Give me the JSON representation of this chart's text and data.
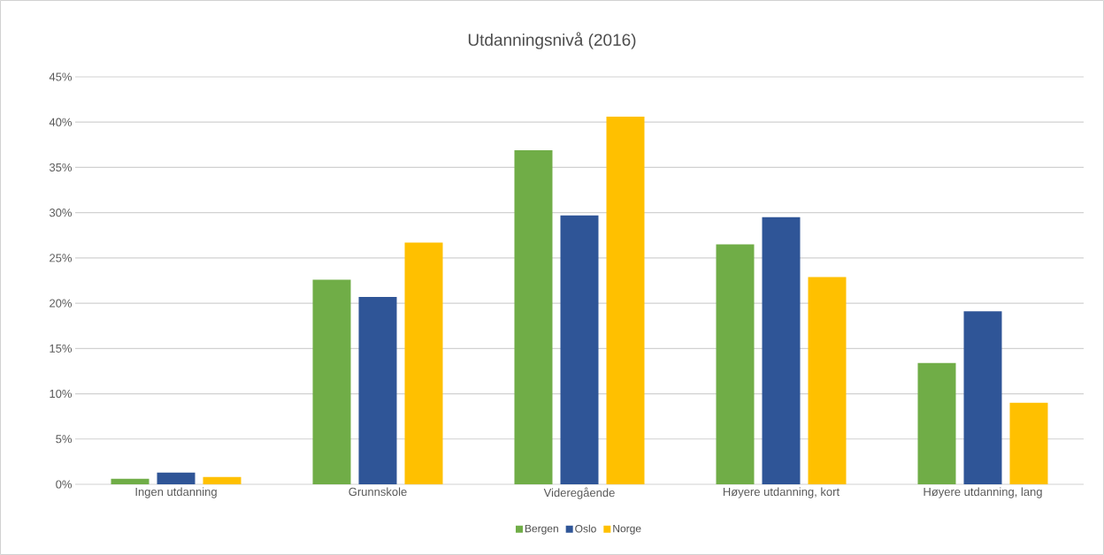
{
  "chart_data": {
    "type": "bar",
    "title": "Utdanningsnivå (2016)",
    "categories": [
      "Ingen utdanning",
      "Grunnskole",
      "Videregående",
      "Høyere utdanning, kort",
      "Høyere utdanning, lang"
    ],
    "series": [
      {
        "name": "Bergen",
        "color": "#70ad47",
        "values": [
          0.6,
          22.6,
          36.9,
          26.5,
          13.4
        ]
      },
      {
        "name": "Oslo",
        "color": "#2f5597",
        "values": [
          1.3,
          20.7,
          29.7,
          29.5,
          19.1
        ]
      },
      {
        "name": "Norge",
        "color": "#ffc000",
        "values": [
          0.8,
          26.7,
          40.6,
          22.9,
          9.0
        ]
      }
    ],
    "ylim": [
      0,
      45
    ],
    "yticks": [
      {
        "value": 0,
        "label": "0%"
      },
      {
        "value": 5,
        "label": "5%"
      },
      {
        "value": 10,
        "label": "10%"
      },
      {
        "value": 15,
        "label": "15%"
      },
      {
        "value": 20,
        "label": "20%"
      },
      {
        "value": 25,
        "label": "25%"
      },
      {
        "value": 30,
        "label": "30%"
      },
      {
        "value": 35,
        "label": "35%"
      },
      {
        "value": 40,
        "label": "40%"
      },
      {
        "value": 45,
        "label": "45%"
      }
    ],
    "grid": "y",
    "legend": "bottom"
  }
}
